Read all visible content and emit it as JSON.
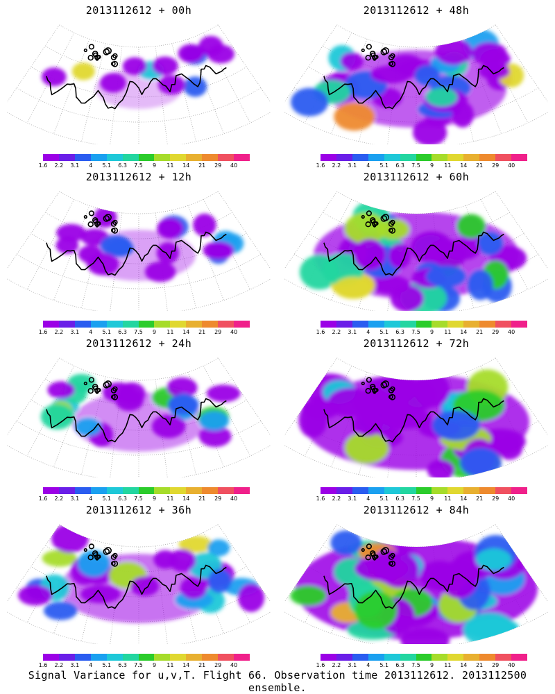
{
  "caption": "Signal Variance for u,v,T. Flight 66. Observation time 2013112612. 2013112500 ensemble.",
  "colorbar": {
    "colors": [
      "#9b00e6",
      "#6a1ee8",
      "#2a5cf0",
      "#1aa0f0",
      "#1ec8d8",
      "#22d6a0",
      "#2bcc2b",
      "#a6dc2a",
      "#e0d830",
      "#e8b030",
      "#ee8a2e",
      "#f05060",
      "#f0208a"
    ],
    "labels": [
      "1.6",
      "2.2",
      "3.1",
      "4",
      "5.1",
      "6.3",
      "7.5",
      "9",
      "11",
      "14",
      "21",
      "29",
      "40"
    ]
  },
  "chart_data": [
    {
      "type": "heatmap",
      "title": "2013112612 + 00h",
      "forecast_hour": 0,
      "coverage": 0.15,
      "intensity": 0.45
    },
    {
      "type": "heatmap",
      "title": "2013112612 + 12h",
      "forecast_hour": 12,
      "coverage": 0.28,
      "intensity": 0.45
    },
    {
      "type": "heatmap",
      "title": "2013112612 + 24h",
      "forecast_hour": 24,
      "coverage": 0.38,
      "intensity": 0.5
    },
    {
      "type": "heatmap",
      "title": "2013112612 + 36h",
      "forecast_hour": 36,
      "coverage": 0.5,
      "intensity": 0.6
    },
    {
      "type": "heatmap",
      "title": "2013112612 + 48h",
      "forecast_hour": 48,
      "coverage": 0.6,
      "intensity": 0.55
    },
    {
      "type": "heatmap",
      "title": "2013112612 + 60h",
      "forecast_hour": 60,
      "coverage": 0.72,
      "intensity": 0.6
    },
    {
      "type": "heatmap",
      "title": "2013112612 + 72h",
      "forecast_hour": 72,
      "coverage": 0.82,
      "intensity": 0.62
    },
    {
      "type": "heatmap",
      "title": "2013112612 + 84h",
      "forecast_hour": 84,
      "coverage": 0.9,
      "intensity": 0.66
    }
  ]
}
